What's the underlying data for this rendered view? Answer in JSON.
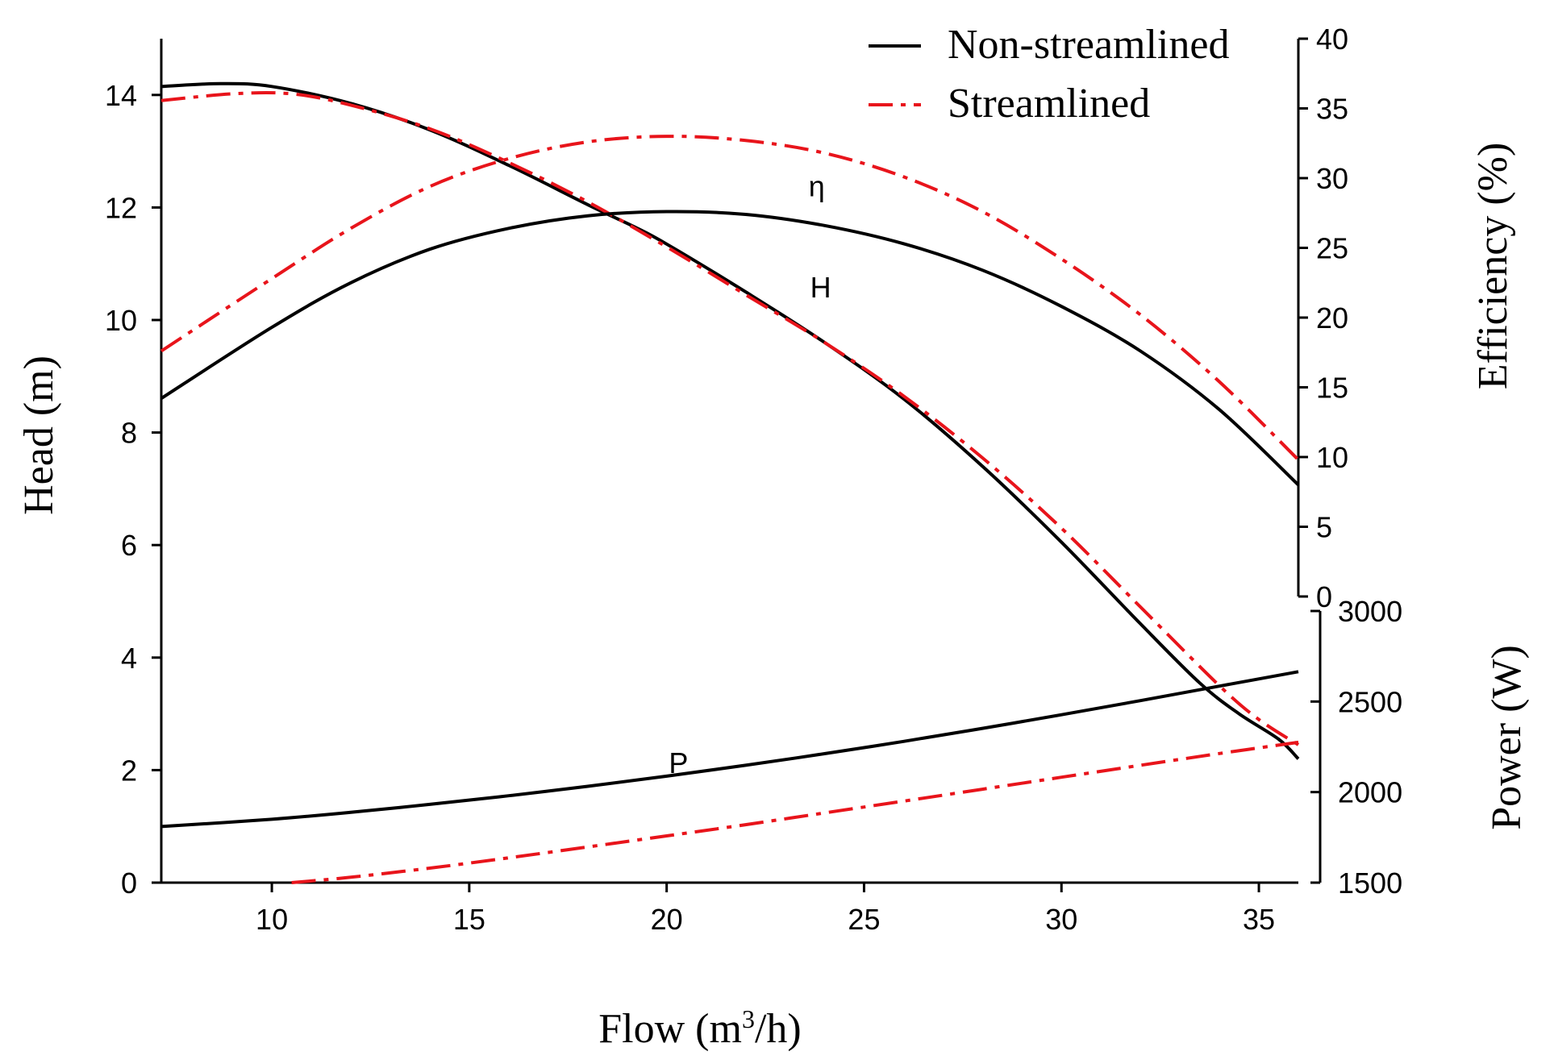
{
  "chart_data": {
    "type": "line",
    "xlabel_prefix": "Flow (m",
    "xlabel_sup": "3",
    "xlabel_suffix": "/h)",
    "ylabel_head": "Head  (m)",
    "ylabel_efficiency": "Efficiency (%)",
    "ylabel_power": "Power (W)",
    "xlim": [
      7.2,
      36
    ],
    "x_ticks": [
      10,
      15,
      20,
      25,
      30,
      35
    ],
    "head_axis": {
      "range": [
        0,
        15
      ],
      "ticks": [
        0,
        2,
        4,
        6,
        8,
        10,
        12,
        14
      ]
    },
    "efficiency_axis": {
      "range": [
        0,
        40
      ],
      "ticks": [
        0,
        5,
        10,
        15,
        20,
        25,
        30,
        35,
        40
      ]
    },
    "power_axis": {
      "range": [
        1500,
        3000
      ],
      "ticks": [
        1500,
        2000,
        2500,
        3000
      ]
    },
    "legend": {
      "placement": "top-right",
      "entries": [
        {
          "label": "Non-streamlined",
          "color": "#000000",
          "dash": "solid"
        },
        {
          "label": "Streamlined",
          "color": "#e8141b",
          "dash": "dashdot"
        }
      ]
    },
    "annotations": [
      {
        "text": "η",
        "x": 23.8,
        "y": 12.2
      },
      {
        "text": "H",
        "x": 23.9,
        "y": 10.4
      },
      {
        "text": "P",
        "x": 20.3,
        "y": 1.95
      }
    ],
    "series": [
      {
        "name": "Non-streamlined",
        "quantity": "Head",
        "axis": "head",
        "color": "#000000",
        "dash": "solid",
        "x": [
          7.2,
          8.7,
          10,
          12,
          14,
          16,
          18,
          19.2,
          20,
          22,
          24,
          26,
          28,
          30,
          32,
          33.5,
          34.5,
          35.5,
          36
        ],
        "y": [
          14.15,
          14.2,
          14.15,
          13.85,
          13.38,
          12.75,
          12.05,
          11.65,
          11.35,
          10.5,
          9.6,
          8.6,
          7.4,
          6.05,
          4.6,
          3.55,
          3.0,
          2.55,
          2.2
        ]
      },
      {
        "name": "Streamlined",
        "quantity": "Head",
        "axis": "head",
        "color": "#e8141b",
        "dash": "dashdot",
        "x": [
          7.2,
          9,
          10.5,
          12,
          14,
          16,
          18,
          20,
          22,
          24,
          26,
          28,
          30,
          32,
          34,
          35,
          36
        ],
        "y": [
          13.9,
          14.02,
          14.02,
          13.82,
          13.4,
          12.8,
          12.1,
          11.3,
          10.45,
          9.6,
          8.65,
          7.55,
          6.3,
          4.9,
          3.5,
          2.9,
          2.45
        ]
      },
      {
        "name": "Non-streamlined",
        "quantity": "Efficiency",
        "axis": "efficiency",
        "color": "#000000",
        "dash": "solid",
        "x": [
          7.2,
          10,
          12,
          14,
          16,
          18,
          20,
          22,
          24,
          26,
          28,
          30,
          32,
          34,
          36
        ],
        "y": [
          14.2,
          19.3,
          22.5,
          24.9,
          26.4,
          27.3,
          27.6,
          27.4,
          26.6,
          25.3,
          23.4,
          20.8,
          17.6,
          13.4,
          8.0
        ]
      },
      {
        "name": "Streamlined",
        "quantity": "Efficiency",
        "axis": "efficiency",
        "color": "#e8141b",
        "dash": "dashdot",
        "x": [
          7.2,
          10,
          12,
          14,
          16,
          18,
          20,
          22,
          24,
          26,
          28,
          30,
          32,
          34,
          36
        ],
        "y": [
          17.6,
          22.8,
          26.4,
          29.4,
          31.4,
          32.6,
          33.0,
          32.7,
          31.8,
          30.1,
          27.6,
          24.2,
          20.2,
          15.4,
          9.8
        ]
      },
      {
        "name": "Non-streamlined",
        "quantity": "Power",
        "axis": "power",
        "color": "#000000",
        "dash": "solid",
        "x": [
          7.2,
          10,
          12,
          14,
          16,
          18,
          20,
          22,
          24,
          26,
          28,
          30,
          32,
          34,
          36
        ],
        "y": [
          1810,
          1850,
          1888,
          1932,
          1980,
          2032,
          2088,
          2148,
          2212,
          2280,
          2352,
          2427,
          2505,
          2585,
          2665
        ]
      },
      {
        "name": "Streamlined",
        "quantity": "Power",
        "axis": "power",
        "color": "#e8141b",
        "dash": "dashdot",
        "x": [
          10.5,
          12,
          14,
          16,
          18,
          20,
          22,
          24,
          26,
          28,
          30,
          32,
          34,
          36
        ],
        "y": [
          1500,
          1530,
          1580,
          1637,
          1697,
          1758,
          1820,
          1885,
          1950,
          2016,
          2082,
          2148,
          2213,
          2275
        ]
      }
    ]
  }
}
